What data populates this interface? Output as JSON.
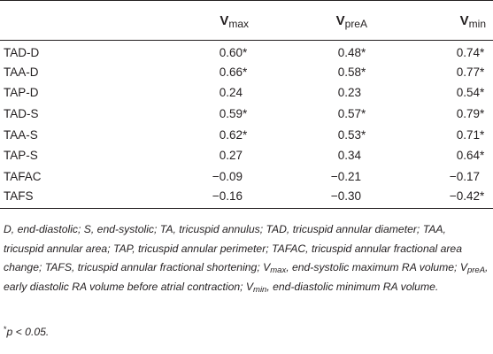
{
  "table": {
    "columns": [
      {
        "main": "V",
        "sub": "max"
      },
      {
        "main": "V",
        "sub": "preA"
      },
      {
        "main": "V",
        "sub": "min"
      }
    ],
    "rows": [
      {
        "label": "TAD-D",
        "values": [
          "0.60*",
          "0.48*",
          "0.74*"
        ]
      },
      {
        "label": "TAA-D",
        "values": [
          "0.66*",
          "0.58*",
          "0.77*"
        ]
      },
      {
        "label": "TAP-D",
        "values": [
          "0.24",
          "0.23",
          "0.54*"
        ]
      },
      {
        "label": "TAD-S",
        "values": [
          "0.59*",
          "0.57*",
          "0.79*"
        ]
      },
      {
        "label": "TAA-S",
        "values": [
          "0.62*",
          "0.53*",
          "0.71*"
        ]
      },
      {
        "label": "TAP-S",
        "values": [
          "0.27",
          "0.34",
          "0.64*"
        ]
      },
      {
        "label": "TAFAC",
        "values": [
          "−0.09",
          "−0.21",
          "−0.17"
        ]
      },
      {
        "label": "TAFS",
        "values": [
          "−0.16",
          "−0.30",
          "−0.42*"
        ]
      }
    ]
  },
  "footnote": {
    "part1": "D, end-diastolic; S, end-systolic; TA, tricuspid annulus; TAD, tricuspid annular diameter; TAA, tricuspid annular area; TAP, tricuspid annular perimeter; TAFAC, tricuspid annular fractional area change; TAFS, tricuspid annular fractional shortening; V",
    "sub1": "max",
    "part2": ", end-systolic maximum RA volume; V",
    "sub2": "preA",
    "part3": ", early diastolic RA volume before atrial contraction; V",
    "sub3": "min",
    "part4": ", end-diastolic minimum RA volume."
  },
  "significance": {
    "marker": "*",
    "text": "p < 0.05."
  }
}
